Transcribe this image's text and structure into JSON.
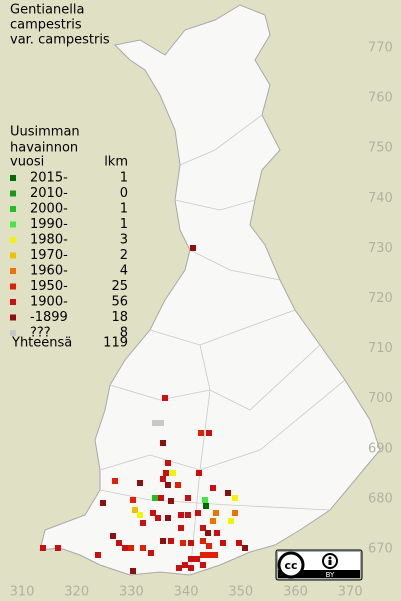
{
  "title": [
    "Gentianella",
    "campestris",
    "var. campestris"
  ],
  "legend": {
    "header": [
      "Uusimman",
      "havainnon",
      "vuosi",
      "lkm"
    ],
    "rows": [
      {
        "label": "2015-",
        "count": 1,
        "color": "#006a00"
      },
      {
        "label": "2010-",
        "count": 0,
        "color": "#169a16"
      },
      {
        "label": "2000-",
        "count": 1,
        "color": "#20c020"
      },
      {
        "label": "1990-",
        "count": 1,
        "color": "#40e840"
      },
      {
        "label": "1980-",
        "count": 3,
        "color": "#f4f400"
      },
      {
        "label": "1970-",
        "count": 2,
        "color": "#f0c000"
      },
      {
        "label": "1960-",
        "count": 4,
        "color": "#f07000"
      },
      {
        "label": "1950-",
        "count": 25,
        "color": "#e02000"
      },
      {
        "label": "1900-",
        "count": 56,
        "color": "#c81010"
      },
      {
        "label": "-1899",
        "count": 18,
        "color": "#8c1010"
      },
      {
        "label": "???",
        "count": 8,
        "color": "#c8c8c8"
      }
    ],
    "total": {
      "label": "Yhteensä",
      "count": 119
    }
  },
  "y_axis": [
    770,
    760,
    750,
    740,
    730,
    720,
    710,
    700,
    690,
    680,
    670
  ],
  "x_axis": [
    310,
    320,
    330,
    340,
    350,
    360,
    370
  ],
  "license": {
    "cc": "cc",
    "by": "BY"
  }
}
